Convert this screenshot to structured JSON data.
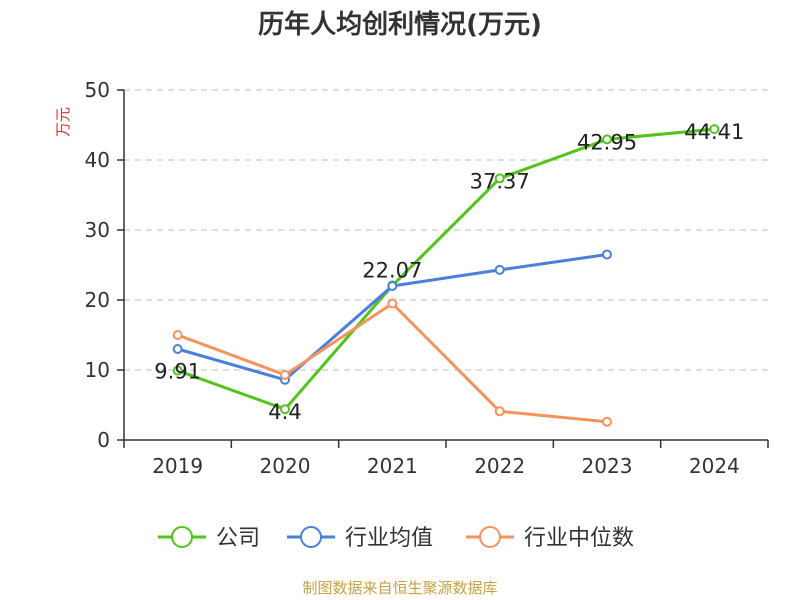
{
  "chart_data": {
    "type": "line",
    "title": "历年人均创利情况(万元)",
    "ylabel": "万元",
    "xlabel": "",
    "categories": [
      "2019",
      "2020",
      "2021",
      "2022",
      "2023",
      "2024"
    ],
    "ylim": [
      0,
      50
    ],
    "yticks": [
      0,
      10,
      20,
      30,
      40,
      50
    ],
    "grid": true,
    "legend_position": "bottom",
    "series": [
      {
        "name": "公司",
        "color": "#52c41a",
        "values": [
          9.91,
          4.4,
          22.07,
          37.37,
          42.95,
          44.41
        ],
        "labels": [
          "9.91",
          "4.4",
          "22.07",
          "37.37",
          "42.95",
          "44.41"
        ]
      },
      {
        "name": "行业均值",
        "color": "#4a7fdb",
        "values": [
          13.0,
          8.6,
          22.0,
          24.3,
          26.5,
          null
        ]
      },
      {
        "name": "行业中位数",
        "color": "#f4935b",
        "values": [
          15.0,
          9.3,
          19.5,
          4.1,
          2.6,
          null
        ]
      }
    ]
  },
  "source_note": "制图数据来自恒生聚源数据库"
}
